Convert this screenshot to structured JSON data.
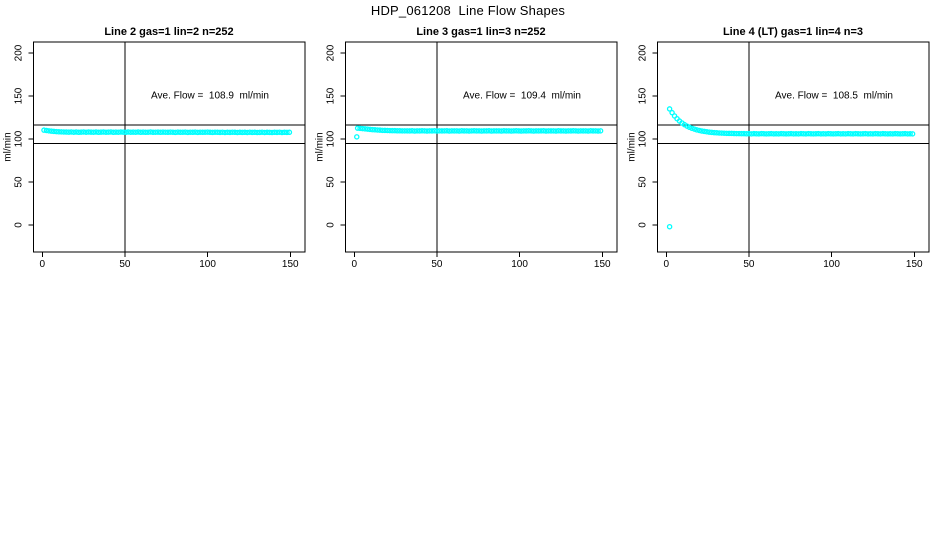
{
  "chart_data": {
    "type": "scatter",
    "title": "HDP_061208  Line Flow Shapes",
    "point_color": "#00FFFF",
    "line_color": "#000000",
    "marker": "open-circle",
    "panels": [
      {
        "title": "Line 2 gas=1 lin=2 n=252",
        "annotation": "Ave. Flow =  108.9  ml/min",
        "ave_flow_ml_min": 108.9,
        "n": 252,
        "ylabel": "ml/min",
        "xlim": [
          0,
          150
        ],
        "ylim": [
          0,
          200
        ],
        "x_ticks": [
          0,
          50,
          100,
          150
        ],
        "y_ticks": [
          0,
          50,
          100,
          150,
          200
        ],
        "vline_x": 50,
        "hlines": [
          116.5,
          95
        ],
        "series": {
          "x0": 1,
          "dx": 1.5,
          "y": [
            110.3,
            109.9,
            109.5,
            109.1,
            108.8,
            108.6,
            108.4,
            108.3,
            108.2,
            108.1,
            108.0,
            108.2,
            107.9,
            108.1,
            107.8,
            108.0,
            108.2,
            107.9,
            108.1,
            108.0,
            107.9,
            108.1,
            107.8,
            108.0,
            108.1,
            107.9,
            108.0,
            108.2,
            107.8,
            108.0,
            107.9,
            108.1,
            108.0,
            107.8,
            108.1,
            107.9,
            108.0,
            107.9,
            108.1,
            107.8,
            108.0,
            107.8,
            107.9,
            108.1,
            107.8,
            107.9,
            108.0,
            107.8,
            108.0,
            107.9,
            107.8,
            108.0,
            107.9,
            107.7,
            108.0,
            107.8,
            107.9,
            108.0,
            107.7,
            107.9,
            107.8,
            108.0,
            107.7,
            107.9,
            107.8,
            107.9,
            108.0,
            107.8,
            107.7,
            107.9,
            107.8,
            107.7,
            107.9,
            107.6,
            107.8,
            107.7,
            107.9,
            107.8,
            107.6,
            107.8,
            107.7,
            107.8,
            107.6,
            107.9,
            107.7,
            107.8,
            107.6,
            107.7,
            107.9,
            107.6,
            107.8,
            107.7,
            107.6,
            107.8,
            107.7,
            107.9,
            107.6,
            107.8,
            107.7,
            107.8
          ]
        },
        "outliers": []
      },
      {
        "title": "Line 3 gas=1 lin=3 n=252",
        "annotation": "Ave. Flow =  109.4  ml/min",
        "ave_flow_ml_min": 109.4,
        "n": 252,
        "ylabel": "ml/min",
        "xlim": [
          0,
          150
        ],
        "ylim": [
          0,
          200
        ],
        "x_ticks": [
          0,
          50,
          100,
          150
        ],
        "y_ticks": [
          0,
          50,
          100,
          150,
          200
        ],
        "vline_x": 50,
        "hlines": [
          116.5,
          95
        ],
        "series": {
          "x0": 2,
          "dx": 1.5,
          "y": [
            112.6,
            112.4,
            112.1,
            111.8,
            111.5,
            111.2,
            110.9,
            110.7,
            110.5,
            110.3,
            110.1,
            110.0,
            109.9,
            109.8,
            109.7,
            109.7,
            109.6,
            109.6,
            109.5,
            109.5,
            109.5,
            109.4,
            109.6,
            109.3,
            109.5,
            109.4,
            109.6,
            109.5,
            109.3,
            109.5,
            109.4,
            109.6,
            109.3,
            109.5,
            109.4,
            109.5,
            109.6,
            109.3,
            109.5,
            109.4,
            109.5,
            109.3,
            109.6,
            109.4,
            109.5,
            109.3,
            109.5,
            109.6,
            109.4,
            109.5,
            109.3,
            109.5,
            109.4,
            109.6,
            109.3,
            109.5,
            109.4,
            109.5,
            109.3,
            109.6,
            109.4,
            109.5,
            109.3,
            109.5,
            109.6,
            109.4,
            109.3,
            109.5,
            109.4,
            109.6,
            109.5,
            109.3,
            109.5,
            109.4,
            109.5,
            109.6,
            109.3,
            109.5,
            109.4,
            109.5,
            109.3,
            109.6,
            109.4,
            109.5,
            109.3,
            109.5,
            109.4,
            109.6,
            109.5,
            109.3,
            109.5,
            109.4,
            109.5,
            109.3,
            109.6,
            109.4,
            109.5,
            109.3,
            109.5
          ]
        },
        "outliers": [
          [
            1.5,
            102.5
          ]
        ]
      },
      {
        "title": "Line 4 (LT) gas=1 lin=4 n=3",
        "annotation": "Ave. Flow =  108.5  ml/min",
        "ave_flow_ml_min": 108.5,
        "n": 3,
        "ylabel": "ml/min",
        "xlim": [
          0,
          150
        ],
        "ylim": [
          0,
          200
        ],
        "x_ticks": [
          0,
          50,
          100,
          150
        ],
        "y_ticks": [
          0,
          50,
          100,
          150,
          200
        ],
        "vline_x": 50,
        "hlines": [
          116.5,
          95
        ],
        "series": {
          "x0": 2,
          "dx": 1.5,
          "y": [
            135.0,
            130.6,
            126.8,
            123.6,
            120.9,
            118.6,
            116.7,
            115.0,
            113.6,
            112.5,
            111.5,
            110.6,
            109.9,
            109.3,
            108.8,
            108.4,
            108.0,
            107.7,
            107.4,
            107.2,
            107.0,
            106.9,
            106.7,
            106.6,
            106.5,
            106.5,
            106.4,
            106.3,
            106.3,
            106.2,
            106.2,
            106.1,
            106.2,
            106.0,
            106.2,
            106.1,
            106.0,
            106.2,
            106.1,
            106.0,
            106.1,
            106.2,
            106.0,
            106.1,
            106.0,
            106.2,
            106.1,
            106.0,
            106.1,
            106.2,
            106.0,
            106.1,
            106.0,
            106.2,
            106.1,
            106.0,
            106.2,
            106.1,
            106.0,
            106.1,
            106.2,
            106.0,
            106.1,
            106.0,
            106.2,
            106.1,
            106.0,
            106.1,
            106.2,
            106.0,
            106.1,
            106.0,
            106.2,
            106.1,
            106.0,
            106.2,
            106.1,
            106.0,
            106.1,
            106.2,
            106.0,
            106.1,
            106.0,
            106.2,
            106.1,
            106.0,
            106.2,
            106.1,
            106.0,
            106.1,
            106.0,
            106.2,
            106.1,
            106.0,
            106.1,
            106.2,
            106.0,
            106.1,
            106.0
          ]
        },
        "outliers": [
          [
            2,
            -2
          ]
        ]
      }
    ]
  }
}
